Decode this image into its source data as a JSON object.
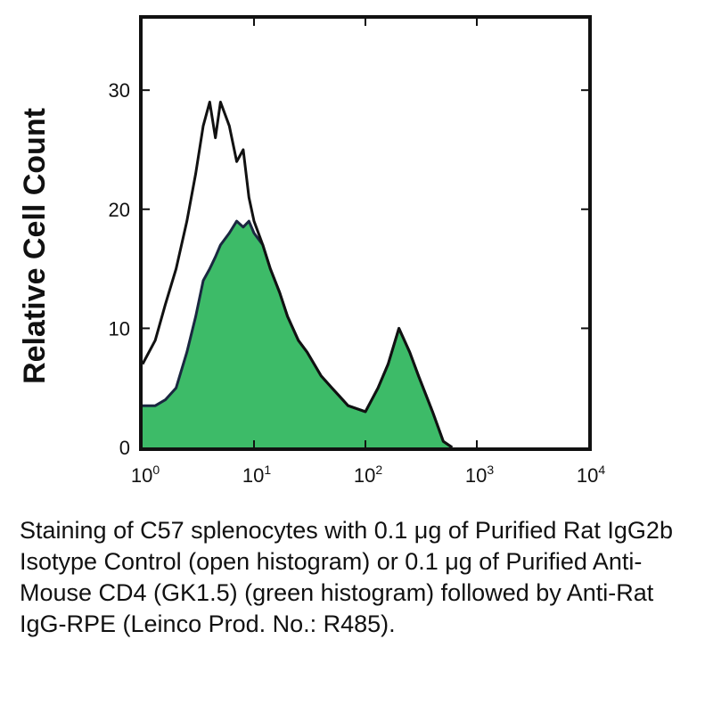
{
  "chart_data": {
    "type": "area",
    "title": "",
    "xlabel": "",
    "ylabel": "Relative Cell Count",
    "xscale": "log",
    "xlim": [
      1,
      10000
    ],
    "ylim": [
      0,
      36
    ],
    "grid": false,
    "x_ticks": [
      {
        "base": "10",
        "exp": "0",
        "value": 1
      },
      {
        "base": "10",
        "exp": "1",
        "value": 10
      },
      {
        "base": "10",
        "exp": "2",
        "value": 100
      },
      {
        "base": "10",
        "exp": "3",
        "value": 1000
      },
      {
        "base": "10",
        "exp": "4",
        "value": 10000
      }
    ],
    "y_ticks": [
      "0",
      "10",
      "20",
      "30"
    ],
    "y_tick_values": [
      0,
      10,
      20,
      30
    ],
    "series": [
      {
        "style": "open",
        "color": "#111111",
        "x": [
          1,
          1.3,
          1.6,
          2.0,
          2.5,
          3.0,
          3.5,
          4.0,
          4.5,
          5.0,
          6.0,
          7.0,
          8.0,
          9.0,
          10,
          12,
          14,
          17,
          20,
          25,
          30,
          40,
          50,
          70,
          100,
          130,
          160,
          200,
          250,
          300,
          400,
          500,
          600
        ],
        "y": [
          7,
          9,
          12,
          15,
          19,
          23,
          27,
          29,
          26,
          29,
          27,
          24,
          25,
          21,
          19,
          17,
          15,
          13,
          11,
          9,
          8,
          6,
          5,
          3.5,
          3,
          5,
          7,
          10,
          8,
          6,
          3,
          0.5,
          0
        ]
      },
      {
        "style": "filled",
        "color": "#3dbb68",
        "x": [
          1,
          1.3,
          1.6,
          2.0,
          2.5,
          3.0,
          3.5,
          4.0,
          4.5,
          5.0,
          6.0,
          7.0,
          8.0,
          9.0,
          10,
          12,
          14,
          17,
          20,
          25,
          30,
          40,
          50,
          70,
          100,
          130,
          160,
          200,
          250,
          300,
          400,
          500,
          600
        ],
        "y": [
          3.5,
          3.5,
          4,
          5,
          8,
          11,
          14,
          15,
          16,
          17,
          18,
          19,
          18.5,
          19,
          18,
          17,
          15,
          13,
          11,
          9,
          8,
          6,
          5,
          3.5,
          3,
          5,
          7,
          10,
          8,
          6,
          3,
          0.5,
          0
        ]
      }
    ]
  },
  "caption": "Staining of C57 splenocytes with 0.1 μg of Purified Rat IgG2b Isotype Control (open histogram) or 0.1 μg of Purified Anti-Mouse CD4 (GK1.5) (green histogram) followed by Anti-Rat IgG-RPE (Leinco Prod. No.: R485)."
}
